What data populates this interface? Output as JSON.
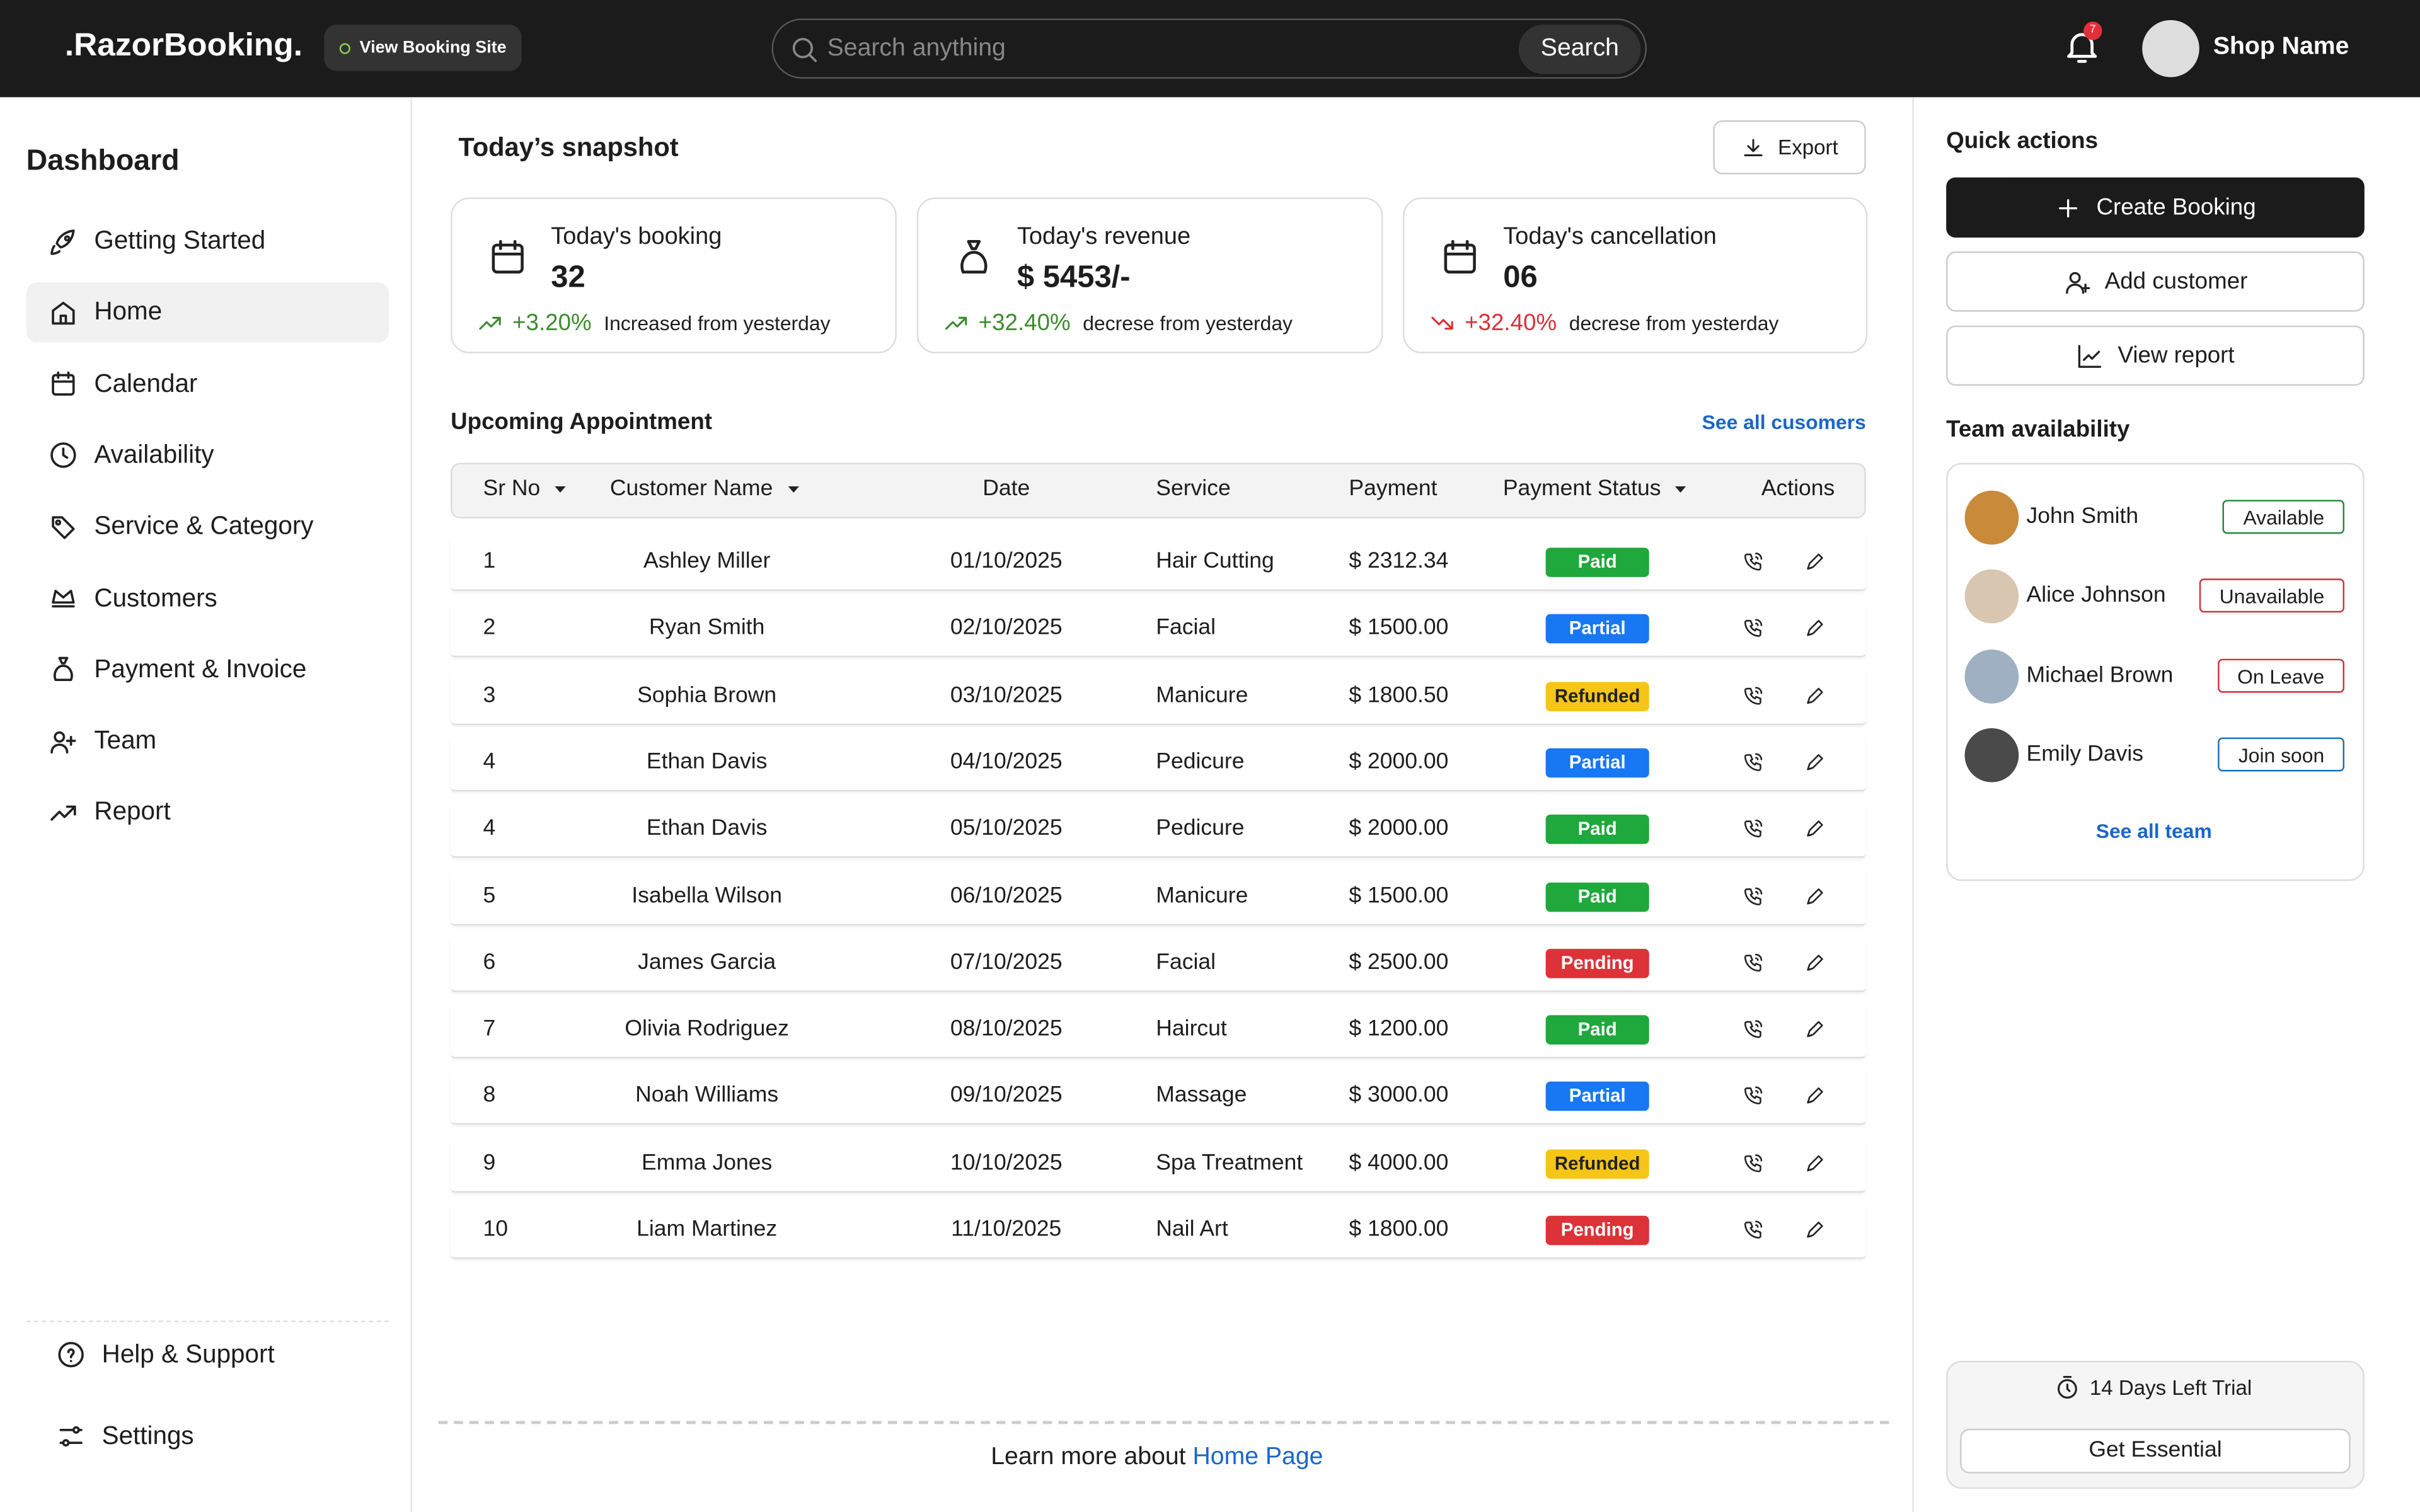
{
  "header": {
    "logo": ".RazorBooking.",
    "view_site": "View Booking Site",
    "search_placeholder": "Search anything",
    "search_button": "Search",
    "notification_count": 7,
    "shop_name": "Shop Name"
  },
  "sidebar": {
    "title": "Dashboard",
    "items": [
      {
        "label": "Getting Started"
      },
      {
        "label": "Home",
        "active": true
      },
      {
        "label": "Calendar"
      },
      {
        "label": "Availability"
      },
      {
        "label": "Service & Category"
      },
      {
        "label": "Customers"
      },
      {
        "label": "Payment & Invoice"
      },
      {
        "label": "Team"
      },
      {
        "label": "Report"
      }
    ],
    "footer_items": [
      "Help & Support",
      "Settings"
    ]
  },
  "snapshot": {
    "title": "Today’s snapshot",
    "export": "Export",
    "cards": [
      {
        "label": "Today's booking",
        "value": "32",
        "change": "+3.20%",
        "trend": "up",
        "note": "Increased from yesterday"
      },
      {
        "label": "Today's revenue",
        "value": "$ 5453/-",
        "change": "+32.40%",
        "trend": "up",
        "note": "decrese from yesterday"
      },
      {
        "label": "Today's cancellation",
        "value": "06",
        "change": "+32.40%",
        "trend": "down",
        "note": "decrese from yesterday"
      }
    ]
  },
  "appointments": {
    "title": "Upcoming Appointment",
    "see_all": "See all cusomers",
    "columns": [
      {
        "label": "Sr No",
        "sortable": true
      },
      {
        "label": "Customer Name",
        "sortable": true
      },
      {
        "label": "Date"
      },
      {
        "label": "Service"
      },
      {
        "label": "Payment"
      },
      {
        "label": "Payment Status",
        "sortable": true
      },
      {
        "label": "Actions"
      }
    ],
    "rows": [
      {
        "sr": 1,
        "name": "Ashley Miller",
        "date": "01/10/2025",
        "service": "Hair Cutting",
        "payment": "$ 2312.34",
        "status": "Paid",
        "status_color": "#1fa83c",
        "status_text": "#ffffff"
      },
      {
        "sr": 2,
        "name": "Ryan Smith",
        "date": "02/10/2025",
        "service": "Facial",
        "payment": "$ 1500.00",
        "status": "Partial",
        "status_color": "#1877f2",
        "status_text": "#ffffff"
      },
      {
        "sr": 3,
        "name": "Sophia Brown",
        "date": "03/10/2025",
        "service": "Manicure",
        "payment": "$ 1800.50",
        "status": "Refunded",
        "status_color": "#f5c518",
        "status_text": "#222222"
      },
      {
        "sr": 4,
        "name": "Ethan Davis",
        "date": "04/10/2025",
        "service": "Pedicure",
        "payment": "$ 2000.00",
        "status": "Partial",
        "status_color": "#1877f2",
        "status_text": "#ffffff"
      },
      {
        "sr": 4,
        "name": "Ethan Davis",
        "date": "05/10/2025",
        "service": "Pedicure",
        "payment": "$ 2000.00",
        "status": "Paid",
        "status_color": "#1fa83c",
        "status_text": "#ffffff"
      },
      {
        "sr": 5,
        "name": "Isabella Wilson",
        "date": "06/10/2025",
        "service": "Manicure",
        "payment": "$ 1500.00",
        "status": "Paid",
        "status_color": "#1fa83c",
        "status_text": "#ffffff"
      },
      {
        "sr": 6,
        "name": "James Garcia",
        "date": "07/10/2025",
        "service": "Facial",
        "payment": "$ 2500.00",
        "status": "Pending",
        "status_color": "#dc3238",
        "status_text": "#ffffff"
      },
      {
        "sr": 7,
        "name": "Olivia Rodriguez",
        "date": "08/10/2025",
        "service": "Haircut",
        "payment": "$ 1200.00",
        "status": "Paid",
        "status_color": "#1fa83c",
        "status_text": "#ffffff"
      },
      {
        "sr": 8,
        "name": "Noah Williams",
        "date": "09/10/2025",
        "service": "Massage",
        "payment": "$ 3000.00",
        "status": "Partial",
        "status_color": "#1877f2",
        "status_text": "#ffffff"
      },
      {
        "sr": 9,
        "name": "Emma Jones",
        "date": "10/10/2025",
        "service": "Spa Treatment",
        "payment": "$ 4000.00",
        "status": "Refunded",
        "status_color": "#f5c518",
        "status_text": "#222222"
      },
      {
        "sr": 10,
        "name": "Liam Martinez",
        "date": "11/10/2025",
        "service": "Nail Art",
        "payment": "$ 1800.00",
        "status": "Pending",
        "status_color": "#dc3238",
        "status_text": "#ffffff"
      }
    ]
  },
  "learn_more": {
    "text": "Learn more about",
    "link": "Home Page"
  },
  "quick_actions": {
    "title": "Quick actions",
    "buttons": [
      {
        "label": "Create Booking",
        "primary": true
      },
      {
        "label": "Add customer"
      },
      {
        "label": "View report"
      }
    ]
  },
  "team": {
    "title": "Team availability",
    "members": [
      {
        "name": "John Smith",
        "status": "Available",
        "color": "#1e8a3a"
      },
      {
        "name": "Alice Johnson",
        "status": "Unavailable",
        "color": "#d0303a"
      },
      {
        "name": "Michael Brown",
        "status": "On Leave",
        "color": "#d0303a"
      },
      {
        "name": "Emily Davis",
        "status": "Join soon",
        "color": "#1a6fb5"
      }
    ],
    "see_all": "See all team"
  },
  "trial": {
    "text": "14 Days Left Trial",
    "button": "Get Essential"
  }
}
